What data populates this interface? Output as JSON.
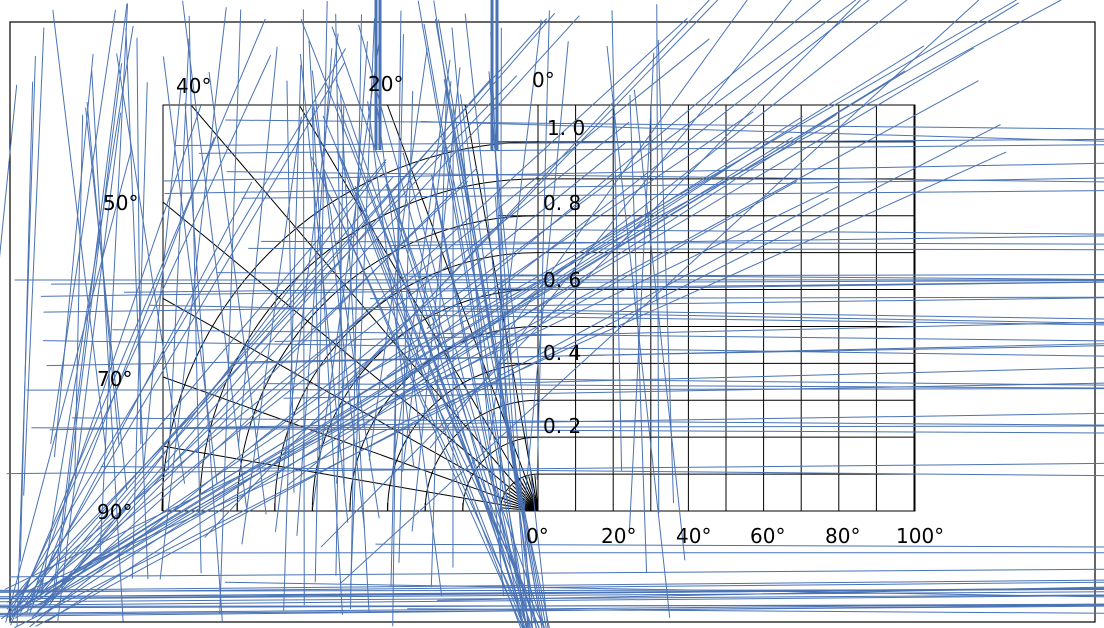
{
  "diagram": {
    "type": "polar-to-cartesian light distribution chart",
    "polar": {
      "angle_labels": [
        "0°",
        "20°",
        "40°",
        "50°",
        "70°",
        "90°"
      ],
      "radial_labels": [
        "1. 0",
        "0. 8",
        "0. 6",
        "0. 4",
        "0. 2"
      ],
      "radial_rings": [
        0.1,
        0.2,
        0.3,
        0.4,
        0.5,
        0.6,
        0.7,
        0.8,
        0.9,
        1.0
      ],
      "ray_angles_deg": [
        0,
        10,
        20,
        30,
        40,
        50,
        60,
        70,
        80,
        90
      ]
    },
    "cartesian": {
      "x_tick_labels": [
        "0°",
        "20°",
        "40°",
        "60°",
        "80°",
        "100°"
      ],
      "x_range": [
        0,
        100
      ],
      "y_range": [
        0,
        1.1
      ],
      "grid_step_x": 10,
      "grid_step_y": 0.1
    },
    "colors": {
      "grid": "#000000",
      "overlay": "#4a73b5",
      "background": "#ffffff"
    }
  }
}
